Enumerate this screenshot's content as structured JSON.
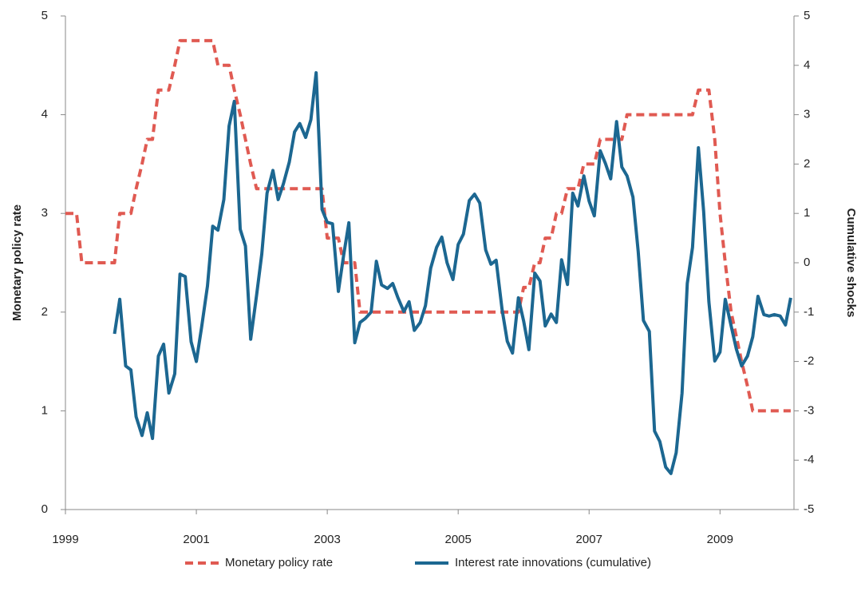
{
  "chart_data": {
    "type": "line",
    "y_label": "Monetary policy rate",
    "y2_label": "Cumulative shocks",
    "x": [
      1999,
      1999.08,
      1999.17,
      1999.25,
      1999.33,
      1999.42,
      1999.5,
      1999.58,
      1999.67,
      1999.75,
      1999.83,
      1999.92,
      2000,
      2000.08,
      2000.17,
      2000.25,
      2000.33,
      2000.42,
      2000.5,
      2000.58,
      2000.67,
      2000.75,
      2000.83,
      2000.92,
      2001,
      2001.08,
      2001.17,
      2001.25,
      2001.33,
      2001.42,
      2001.5,
      2001.58,
      2001.67,
      2001.75,
      2001.83,
      2001.92,
      2002,
      2002.08,
      2002.17,
      2002.25,
      2002.33,
      2002.42,
      2002.5,
      2002.58,
      2002.67,
      2002.75,
      2002.83,
      2002.92,
      2003,
      2003.08,
      2003.17,
      2003.25,
      2003.33,
      2003.42,
      2003.5,
      2003.58,
      2003.67,
      2003.75,
      2003.83,
      2003.92,
      2004,
      2004.08,
      2004.17,
      2004.25,
      2004.33,
      2004.42,
      2004.5,
      2004.58,
      2004.67,
      2004.75,
      2004.83,
      2004.92,
      2005,
      2005.08,
      2005.17,
      2005.25,
      2005.33,
      2005.42,
      2005.5,
      2005.58,
      2005.67,
      2005.75,
      2005.83,
      2005.92,
      2006,
      2006.08,
      2006.17,
      2006.25,
      2006.33,
      2006.42,
      2006.5,
      2006.58,
      2006.67,
      2006.75,
      2006.83,
      2006.92,
      2007,
      2007.08,
      2007.17,
      2007.25,
      2007.33,
      2007.42,
      2007.5,
      2007.58,
      2007.67,
      2007.75,
      2007.83,
      2007.92,
      2008,
      2008.08,
      2008.17,
      2008.25,
      2008.33,
      2008.42,
      2008.5,
      2008.58,
      2008.67,
      2008.75,
      2008.83,
      2008.92,
      2009,
      2009.08,
      2009.17,
      2009.25,
      2009.33,
      2009.42,
      2009.5,
      2009.58,
      2009.67,
      2009.75,
      2009.83,
      2009.92,
      2010,
      2010.08
    ],
    "xlim": [
      1999,
      2010.13
    ],
    "xticks": [
      1999,
      2001,
      2003,
      2005,
      2007,
      2009
    ],
    "ylim": [
      0,
      5
    ],
    "yticks": [
      0,
      1,
      2,
      3,
      4,
      5
    ],
    "y2lim": [
      -5,
      5
    ],
    "y2ticks": [
      -5,
      -4,
      -3,
      -2,
      -1,
      0,
      1,
      2,
      3,
      4,
      5
    ],
    "series": [
      {
        "name": "Monetary policy rate",
        "color": "#e05a52",
        "linestyle": "dashed",
        "values": [
          3,
          3,
          3,
          2.5,
          2.5,
          2.5,
          2.5,
          2.5,
          2.5,
          2.5,
          3,
          3,
          3,
          3.25,
          3.5,
          3.75,
          3.75,
          4.25,
          4.25,
          4.25,
          4.5,
          4.75,
          4.75,
          4.75,
          4.75,
          4.75,
          4.75,
          4.75,
          4.5,
          4.5,
          4.5,
          4.25,
          4,
          3.75,
          3.5,
          3.25,
          3.25,
          3.25,
          3.25,
          3.25,
          3.25,
          3.25,
          3.25,
          3.25,
          3.25,
          3.25,
          3.25,
          3.25,
          2.75,
          2.75,
          2.75,
          2.5,
          2.5,
          2.5,
          2,
          2,
          2,
          2,
          2,
          2,
          2,
          2,
          2,
          2,
          2,
          2,
          2,
          2,
          2,
          2,
          2,
          2,
          2,
          2,
          2,
          2,
          2,
          2,
          2,
          2,
          2,
          2,
          2,
          2,
          2.25,
          2.25,
          2.5,
          2.5,
          2.75,
          2.75,
          3,
          3,
          3.25,
          3.25,
          3.25,
          3.5,
          3.5,
          3.5,
          3.75,
          3.75,
          3.75,
          3.75,
          3.75,
          4,
          4,
          4,
          4,
          4,
          4,
          4,
          4,
          4,
          4,
          4,
          4,
          4,
          4.25,
          4.25,
          4.25,
          3.75,
          3,
          2.5,
          2,
          1.75,
          1.5,
          1.25,
          1,
          1,
          1,
          1,
          1,
          1,
          1,
          1
        ]
      },
      {
        "name": "Interest rate innovations (cumulative)",
        "color": "#1c6791",
        "linestyle": "solid",
        "axis": "y2",
        "values": [
          null,
          null,
          null,
          null,
          null,
          null,
          null,
          null,
          null,
          -1.44,
          -0.74,
          -2.09,
          -2.17,
          -3.12,
          -3.5,
          -3.04,
          -3.56,
          -1.89,
          -1.65,
          -2.64,
          -2.25,
          -0.23,
          -0.28,
          -1.6,
          -2.0,
          -1.31,
          -0.47,
          0.74,
          0.66,
          1.28,
          2.77,
          3.27,
          0.68,
          0.34,
          -1.55,
          -0.66,
          0.18,
          1.41,
          1.87,
          1.28,
          1.6,
          2.04,
          2.65,
          2.82,
          2.54,
          2.9,
          3.85,
          1.08,
          0.82,
          0.79,
          -0.58,
          0.15,
          0.81,
          -1.62,
          -1.21,
          -1.13,
          -1.0,
          0.03,
          -0.45,
          -0.52,
          -0.42,
          -0.71,
          -0.99,
          -0.79,
          -1.37,
          -1.21,
          -0.87,
          -0.11,
          0.31,
          0.52,
          0.0,
          -0.34,
          0.37,
          0.58,
          1.26,
          1.39,
          1.21,
          0.26,
          -0.03,
          0.05,
          -0.94,
          -1.59,
          -1.83,
          -0.71,
          -1.18,
          -1.76,
          -0.21,
          -0.37,
          -1.28,
          -1.04,
          -1.21,
          0.06,
          -0.44,
          1.41,
          1.15,
          1.76,
          1.25,
          0.95,
          2.27,
          2.01,
          1.7,
          2.86,
          1.94,
          1.76,
          1.33,
          0.23,
          -1.17,
          -1.39,
          -3.41,
          -3.62,
          -4.14,
          -4.27,
          -3.85,
          -2.64,
          -0.42,
          0.31,
          2.33,
          1.04,
          -0.79,
          -1.99,
          -1.81,
          -0.74,
          -1.28,
          -1.75,
          -2.09,
          -1.89,
          -1.5,
          -0.68,
          -1.05,
          -1.08,
          -1.05,
          -1.08,
          -1.26,
          -0.71
        ]
      }
    ]
  }
}
